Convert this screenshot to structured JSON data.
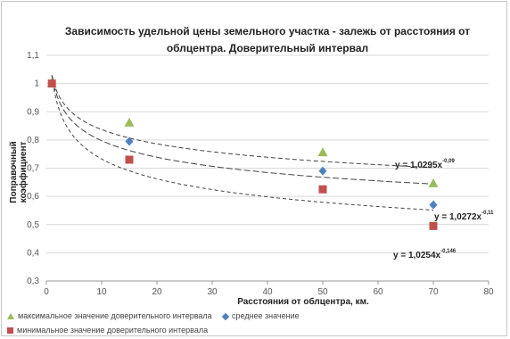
{
  "chart_data": {
    "type": "scatter",
    "title": "Зависимость удельной цены земельного участка - залежь от расстояния от облцентра. Доверительный интервал",
    "xlabel": "Расстояния от облцентра, км.",
    "ylabel": "Поправочный коэффициент",
    "xlim": [
      0,
      80
    ],
    "ylim": [
      0.3,
      1.1
    ],
    "x_ticks": [
      "0",
      "10",
      "20",
      "30",
      "40",
      "50",
      "60",
      "70",
      "80"
    ],
    "y_ticks": [
      "0,3",
      "0,4",
      "0,5",
      "0,6",
      "0,7",
      "0,8",
      "0,9",
      "1",
      "1,1"
    ],
    "series": [
      {
        "name": "максимальное значение доверительного интервала",
        "color": "#9bbb59",
        "marker": "triangle",
        "points": [
          [
            1,
            1.0
          ],
          [
            15,
            0.86
          ],
          [
            50,
            0.755
          ],
          [
            70,
            0.645
          ]
        ]
      },
      {
        "name": "среднее значение",
        "color": "#4f81bd",
        "marker": "diamond",
        "points": [
          [
            1,
            1.0
          ],
          [
            15,
            0.795
          ],
          [
            50,
            0.69
          ],
          [
            70,
            0.57
          ]
        ]
      },
      {
        "name": "минимальное значение доверительного интервала",
        "color": "#c0504d",
        "marker": "square",
        "points": [
          [
            1,
            1.0
          ],
          [
            15,
            0.73
          ],
          [
            50,
            0.625
          ],
          [
            70,
            0.495
          ]
        ]
      }
    ],
    "trendlines": [
      {
        "label": "y = 1,0295x",
        "exponent_label": "-0,09",
        "a": 1.0295,
        "b": -0.09
      },
      {
        "label": "y = 1,0272x",
        "exponent_label": "-0,11",
        "a": 1.0272,
        "b": -0.11
      },
      {
        "label": "y = 1,0254x",
        "exponent_label": "-0,146",
        "a": 1.0254,
        "b": -0.146
      }
    ]
  }
}
